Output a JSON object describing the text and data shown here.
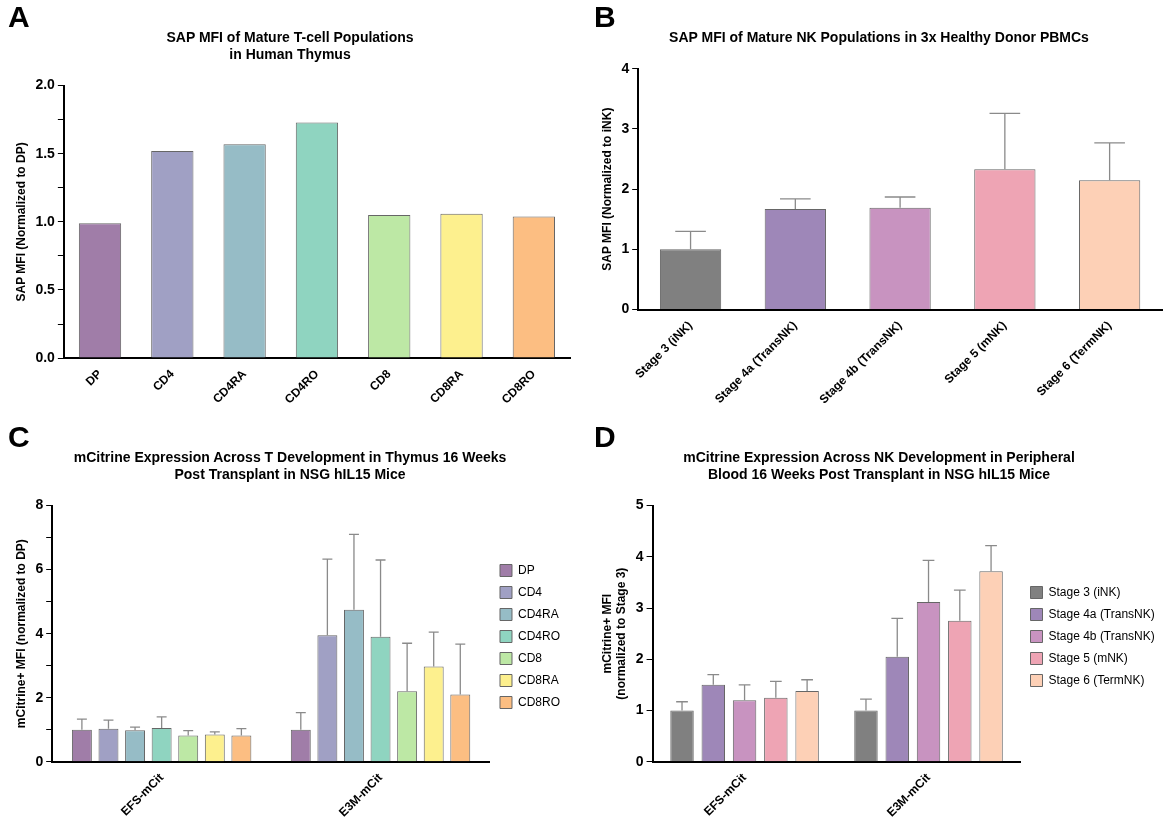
{
  "chart_data": [
    {
      "type": "bar",
      "annotations": [
        "A"
      ],
      "title": "SAP MFI of Mature T-cell Populations\nin Human Thymus",
      "ylabel": "SAP MFI (Normalized to DP)",
      "categories": [
        "DP",
        "CD4",
        "CD4RA",
        "CD4RO",
        "CD8",
        "CD8RA",
        "CD8RO"
      ],
      "values": [
        0.99,
        1.52,
        1.57,
        1.73,
        1.05,
        1.06,
        1.04
      ],
      "colors": [
        "#a07da8",
        "#a0a0c4",
        "#96bcc6",
        "#8fd4c0",
        "#bde8a5",
        "#fdf08e",
        "#fcbe82"
      ],
      "ylim": [
        0,
        2
      ],
      "yticks": [
        {
          "value": 0,
          "label": "0.0"
        },
        {
          "value": 0.25,
          "label": null
        },
        0.5,
        {
          "value": 0.75,
          "label": null
        },
        {
          "value": 1,
          "label": "1.0"
        },
        {
          "value": 1.25,
          "label": null
        },
        1.5,
        {
          "value": 1.75,
          "label": null
        },
        {
          "value": 2,
          "label": "2.0"
        }
      ],
      "grid": false,
      "legend": false
    },
    {
      "type": "bar",
      "annotations": [
        "B"
      ],
      "title": "SAP MFI of Mature NK Populations in 3x Healthy Donor PBMCs",
      "ylabel": "SAP MFI (Normalized to iNK)",
      "categories": [
        "Stage 3 (iNK)",
        "Stage 4a (TransNK)",
        "Stage 4b (TransNK)",
        "Stage 5 (mNK)",
        "Stage 6 (TermNK)"
      ],
      "values": [
        1.0,
        1.67,
        1.69,
        2.33,
        2.15
      ],
      "errors": [
        [
          1.0,
          1.3
        ],
        [
          1.67,
          1.84
        ],
        [
          1.69,
          1.87
        ],
        [
          2.33,
          3.26
        ],
        [
          2.15,
          2.77
        ]
      ],
      "colors": [
        "#808080",
        "#9e87b8",
        "#c893c0",
        "#eea4b4",
        "#fdd0b6"
      ],
      "ylim": [
        0,
        4
      ],
      "yticks": [
        0,
        1,
        2,
        3,
        4
      ],
      "grid": false,
      "legend": false
    },
    {
      "type": "bar",
      "annotations": [
        "C"
      ],
      "title": "mCitrine Expression Across T Development in Thymus 16 Weeks\nPost Transplant in NSG hIL15 Mice",
      "ylabel": "mCitrine+ MFI (normalized to DP)",
      "categories": [
        "EFS-mCit",
        "E3M-mCit"
      ],
      "ylim": [
        0,
        8
      ],
      "yticks": [
        0,
        {
          "value": 1,
          "label": null
        },
        2,
        {
          "value": 3,
          "label": null
        },
        4,
        {
          "value": 5,
          "label": null
        },
        6,
        {
          "value": 7,
          "label": null
        },
        8
      ],
      "grid": false,
      "legend": "right",
      "series": [
        {
          "name": "DP",
          "color": "#a07da8",
          "values": [
            1.0,
            1.0
          ],
          "errors": [
            [
              1.0,
              1.33
            ],
            [
              1.0,
              1.53
            ]
          ]
        },
        {
          "name": "CD4",
          "color": "#a0a0c4",
          "values": [
            1.03,
            3.95
          ],
          "errors": [
            [
              1.03,
              1.3
            ],
            [
              3.95,
              6.33
            ]
          ]
        },
        {
          "name": "CD4RA",
          "color": "#96bcc6",
          "values": [
            0.98,
            4.75
          ],
          "errors": [
            [
              0.98,
              1.08
            ],
            [
              4.75,
              7.1
            ]
          ]
        },
        {
          "name": "CD4RO",
          "color": "#8fd4c0",
          "values": [
            1.05,
            3.9
          ],
          "errors": [
            [
              1.05,
              1.4
            ],
            [
              3.9,
              6.3
            ]
          ]
        },
        {
          "name": "CD8",
          "color": "#bde8a5",
          "values": [
            0.82,
            2.2
          ],
          "errors": [
            [
              0.82,
              0.97
            ],
            [
              2.2,
              3.7
            ]
          ]
        },
        {
          "name": "CD8RA",
          "color": "#fdf08e",
          "values": [
            0.85,
            2.97
          ],
          "errors": [
            [
              0.85,
              0.93
            ],
            [
              2.97,
              4.05
            ]
          ]
        },
        {
          "name": "CD8RO",
          "color": "#fcbe82",
          "values": [
            0.82,
            2.1
          ],
          "errors": [
            [
              0.82,
              1.03
            ],
            [
              2.1,
              3.67
            ]
          ]
        }
      ]
    },
    {
      "type": "bar",
      "annotations": [
        "D"
      ],
      "title": "mCitrine Expression Across NK Development in Peripheral\nBlood 16 Weeks Post Transplant in NSG hIL15 Mice",
      "ylabel": "mCitrine+ MFI\n(normalized to Stage 3)",
      "categories": [
        "EFS-mCit",
        "E3M-mCit"
      ],
      "ylim": [
        0,
        5
      ],
      "yticks": [
        0,
        1,
        2,
        3,
        4,
        5
      ],
      "grid": false,
      "legend": "right",
      "series": [
        {
          "name": "Stage 3 (iNK)",
          "color": "#808080",
          "values": [
            1.0,
            1.0
          ],
          "errors": [
            [
              1.0,
              1.17
            ],
            [
              1.0,
              1.22
            ]
          ]
        },
        {
          "name": "Stage 4a (TransNK)",
          "color": "#9e87b8",
          "values": [
            1.5,
            2.05
          ],
          "errors": [
            [
              1.5,
              1.7
            ],
            [
              2.05,
              2.8
            ]
          ]
        },
        {
          "name": "Stage 4b (TransNK)",
          "color": "#c893c0",
          "values": [
            1.2,
            3.12
          ],
          "errors": [
            [
              1.2,
              1.5
            ],
            [
              3.12,
              3.93
            ]
          ]
        },
        {
          "name": "Stage 5 (mNK)",
          "color": "#eea4b4",
          "values": [
            1.25,
            2.75
          ],
          "errors": [
            [
              1.25,
              1.57
            ],
            [
              2.75,
              3.35
            ]
          ]
        },
        {
          "name": "Stage 6 (TermNK)",
          "color": "#fdd0b6",
          "values": [
            1.38,
            3.72
          ],
          "errors": [
            [
              1.38,
              1.6
            ],
            [
              3.72,
              4.22
            ]
          ]
        }
      ]
    }
  ]
}
